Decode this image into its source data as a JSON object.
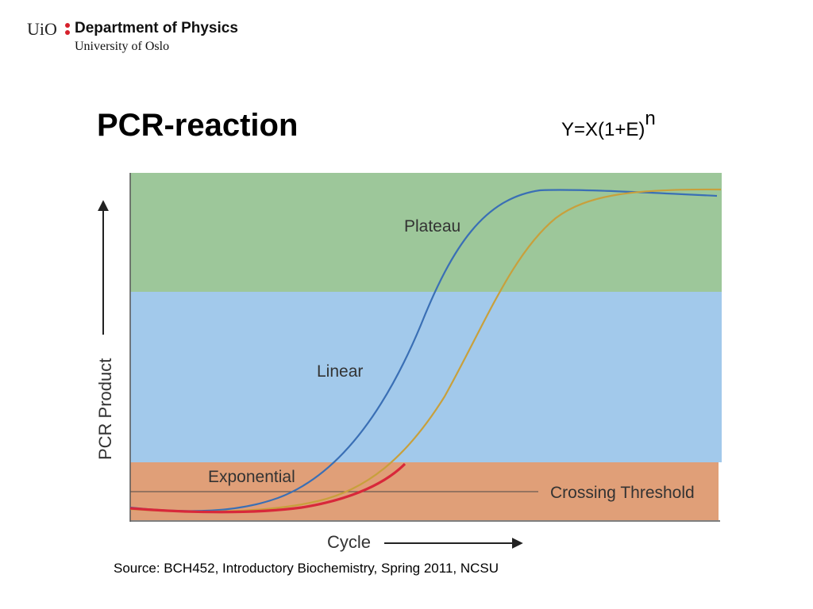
{
  "header": {
    "logo_text": "UiO",
    "department": "Department of Physics",
    "university": "University of Oslo"
  },
  "title": "PCR-reaction",
  "formula": {
    "base": "Y=X(1+E)",
    "exponent": "n"
  },
  "diagram": {
    "regions": [
      {
        "label": "Plateau",
        "color": "#9dc79a"
      },
      {
        "label": "Linear",
        "color": "#a2c9eb"
      },
      {
        "label": "Exponential",
        "color": "#e09f78"
      }
    ],
    "threshold_label": "Crossing Threshold",
    "x_axis_label": "Cycle",
    "y_axis_label": "PCR Product",
    "curve_colors": {
      "sample_a": "#3a6fb5",
      "sample_b": "#c8a03c",
      "low_phase": "#d8283a"
    }
  },
  "source": "Source: BCH452, Introductory Biochemistry, Spring 2011, NCSU"
}
